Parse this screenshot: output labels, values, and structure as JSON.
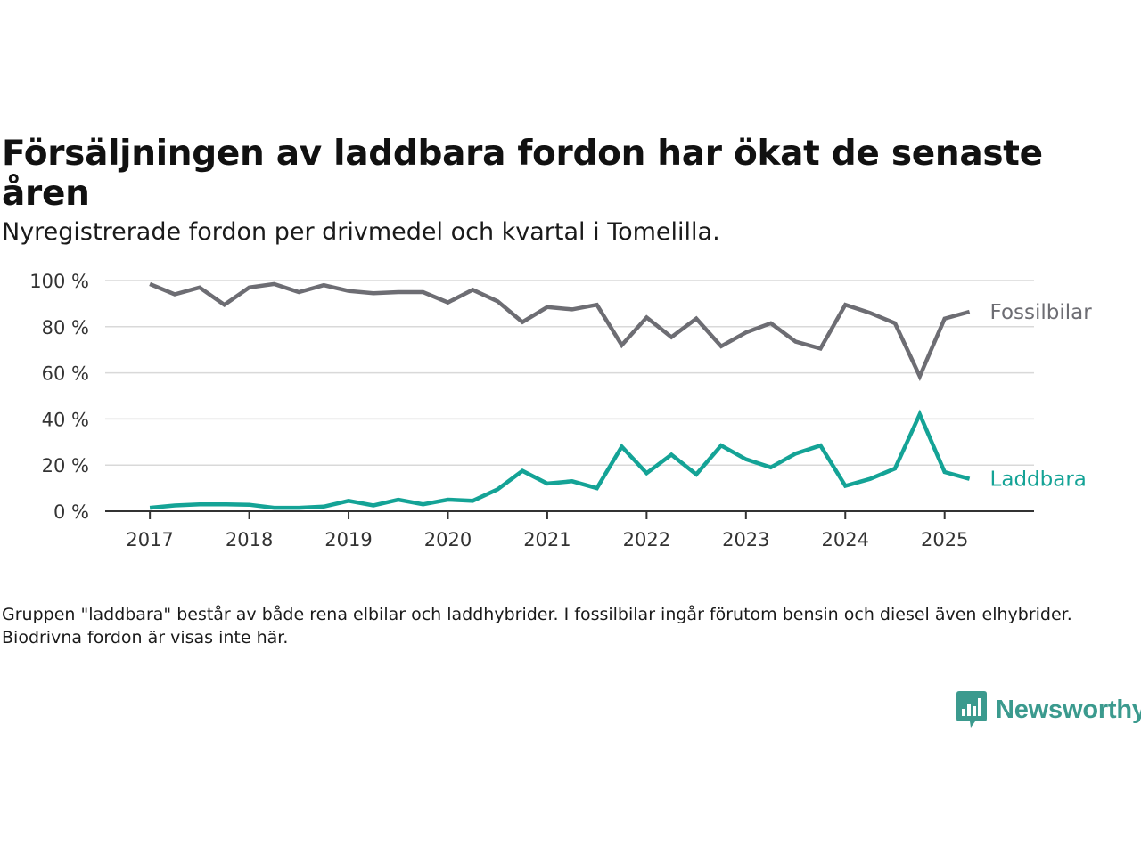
{
  "header": {
    "title": "Försäljningen av laddbara fordon har ökat de senaste åren",
    "subtitle": "Nyregistrerade fordon per drivmedel och kvartal i Tomelilla."
  },
  "footer": {
    "note": "Gruppen \"laddbara\" består av både rena elbilar och laddhybrider. I fossilbilar ingår förutom bensin och diesel även elhybrider. Biodrivna fordon är visas inte här.",
    "brand": "Newsworthy"
  },
  "colors": {
    "fossil": "#6d6d73",
    "laddbara": "#14a396",
    "brand": "#3b9a8e"
  },
  "chart_data": {
    "type": "line",
    "x_unit": "quarter",
    "x": [
      2017.0,
      2017.25,
      2017.5,
      2017.75,
      2018.0,
      2018.25,
      2018.5,
      2018.75,
      2019.0,
      2019.25,
      2019.5,
      2019.75,
      2020.0,
      2020.25,
      2020.5,
      2020.75,
      2021.0,
      2021.25,
      2021.5,
      2021.75,
      2022.0,
      2022.25,
      2022.5,
      2022.75,
      2023.0,
      2023.25,
      2023.5,
      2023.75,
      2024.0,
      2024.25,
      2024.5,
      2024.75,
      2025.0,
      2025.25
    ],
    "series": [
      {
        "name": "Fossilbilar",
        "color": "#6d6d73",
        "values": [
          98.5,
          94,
          97,
          89.5,
          97,
          98.5,
          95,
          98,
          95.5,
          94.5,
          95,
          95,
          90.5,
          96,
          91,
          82,
          88.5,
          87.5,
          89.5,
          72,
          84,
          75.5,
          83.5,
          71.5,
          77.5,
          81.5,
          73.5,
          70.5,
          89.5,
          86,
          81.5,
          58.5,
          83.5,
          86.5
        ]
      },
      {
        "name": "Laddbara",
        "color": "#14a396",
        "values": [
          1.5,
          2.5,
          3,
          3,
          2.8,
          1.5,
          1.5,
          2,
          4.5,
          2.5,
          5,
          3,
          5,
          4.5,
          9.5,
          17.5,
          12,
          13,
          10,
          28,
          16.5,
          24.5,
          16,
          28.5,
          22.5,
          19,
          25,
          28.5,
          11,
          14,
          18.5,
          42,
          17,
          14
        ]
      }
    ],
    "x_ticks": [
      "2017",
      "2018",
      "2019",
      "2020",
      "2021",
      "2022",
      "2023",
      "2024",
      "2025"
    ],
    "y_ticks": [
      0,
      20,
      40,
      60,
      80,
      100
    ],
    "y_tick_labels": [
      "0 %",
      "20 %",
      "40 %",
      "60 %",
      "80 %",
      "100 %"
    ],
    "ylim": [
      0,
      100
    ],
    "xlim": [
      2016.55,
      2025.9
    ],
    "grid": true
  }
}
